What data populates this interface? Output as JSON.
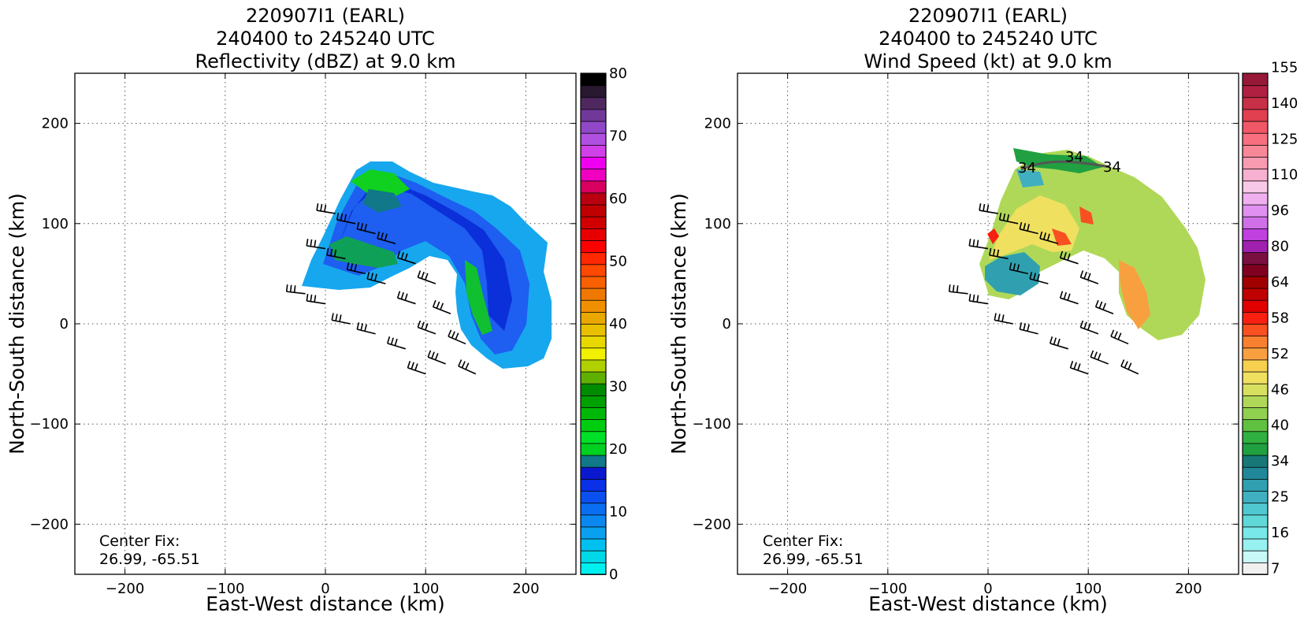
{
  "chart_data": [
    {
      "type": "heatmap",
      "title_lines": [
        "220907I1 (EARL)",
        "240400 to 245240 UTC",
        "Reflectivity (dBZ) at 9.0 km"
      ],
      "xlabel": "East-West distance (km)",
      "ylabel": "North-South distance (km)",
      "xlim": [
        -250,
        250
      ],
      "ylim": [
        -250,
        250
      ],
      "xticks": [
        -200,
        -100,
        0,
        100,
        200
      ],
      "yticks": [
        -200,
        -100,
        0,
        100,
        200
      ],
      "grid": true,
      "annotation_lines": [
        "Center Fix:",
        "26.99, -65.51"
      ],
      "colorbar": {
        "label_values": [
          0,
          10,
          20,
          30,
          40,
          50,
          60,
          70,
          80
        ],
        "min": 0,
        "max": 80,
        "colors": [
          "#00f0f0",
          "#00d8e8",
          "#00c0f0",
          "#0aa0f0",
          "#0a88f0",
          "#0a6ef0",
          "#0a50f0",
          "#0a30e8",
          "#0a18d0",
          "#107888",
          "#00d020",
          "#00e028",
          "#00cc10",
          "#00b808",
          "#00a000",
          "#008c00",
          "#60b000",
          "#b0d000",
          "#f0f000",
          "#e8d800",
          "#e8c000",
          "#e8a800",
          "#f09000",
          "#f07800",
          "#f86000",
          "#ff4800",
          "#ff2800",
          "#ff0000",
          "#e80000",
          "#d00000",
          "#c00000",
          "#b80010",
          "#d80060",
          "#f000c0",
          "#f000f0",
          "#d040e8",
          "#b050e0",
          "#9048c8",
          "#703898",
          "#502860",
          "#281830",
          "#000000"
        ]
      },
      "field_description_values": {
        "dominant_range_dBZ": [
          5,
          30
        ],
        "center_km": [
          0,
          0
        ]
      }
    },
    {
      "type": "heatmap",
      "title_lines": [
        "220907I1 (EARL)",
        "240400 to 245240 UTC",
        "Wind Speed (kt) at 9.0 km"
      ],
      "xlabel": "East-West distance (km)",
      "ylabel": "North-South distance (km)",
      "xlim": [
        -250,
        250
      ],
      "ylim": [
        -250,
        250
      ],
      "xticks": [
        -200,
        -100,
        0,
        100,
        200
      ],
      "yticks": [
        -200,
        -100,
        0,
        100,
        200
      ],
      "grid": true,
      "annotation_lines": [
        "Center Fix:",
        "26.99, -65.51"
      ],
      "contour_labels": [
        "34",
        "34",
        "34"
      ],
      "colorbar": {
        "label_values": [
          7,
          16,
          25,
          34,
          40,
          46,
          52,
          58,
          64,
          80,
          96,
          110,
          125,
          140,
          155
        ],
        "colors": [
          "#f0f0f0",
          "#c8f8f8",
          "#98f0f0",
          "#78e8e8",
          "#60d8d8",
          "#50c8d0",
          "#40b0c0",
          "#30a0b0",
          "#208898",
          "#187878",
          "#20a040",
          "#30b040",
          "#60c040",
          "#90d050",
          "#b0d858",
          "#d8e060",
          "#f0e060",
          "#f8d050",
          "#f8a040",
          "#f88030",
          "#f85020",
          "#f82010",
          "#e00000",
          "#c00000",
          "#a00000",
          "#800020",
          "#7a1040",
          "#a020b0",
          "#c040e0",
          "#d070e8",
          "#e090f0",
          "#f0b0f0",
          "#f8c8e8",
          "#f8b0d0",
          "#f89ab0",
          "#f88898",
          "#f87080",
          "#f05868",
          "#e04050",
          "#c83048",
          "#b02040",
          "#981838"
        ]
      },
      "field_description_values": {
        "dominant_range_kt": [
          34,
          58
        ],
        "center_km": [
          0,
          0
        ]
      }
    }
  ]
}
